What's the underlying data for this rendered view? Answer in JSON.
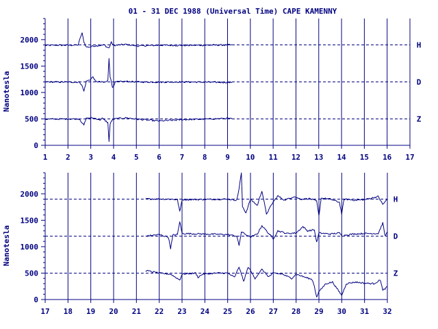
{
  "title": "01 - 31 DEC 1988 (Universal Time) CAPE KAMENNY",
  "chart_data": [
    {
      "type": "line",
      "title": "01 - 31 DEC 1988 (Universal Time) CAPE KAMENNY",
      "ylabel": "Nanotesla",
      "xlim": [
        1,
        17
      ],
      "ylim": [
        0,
        2400
      ],
      "x_ticks": [
        "1",
        "2",
        "3",
        "4",
        "5",
        "6",
        "7",
        "8",
        "9",
        "10",
        "11",
        "12",
        "13",
        "14",
        "15",
        "16",
        "17"
      ],
      "y_ticks": [
        "0",
        "500",
        "1000",
        "1500",
        "2000"
      ],
      "grid": "vertical day lines",
      "series": [
        {
          "name": "H",
          "baseline": 1900,
          "data_end": 9.2,
          "points": [
            [
              1,
              1890
            ],
            [
              1.5,
              1895
            ],
            [
              2.2,
              1895
            ],
            [
              2.45,
              1900
            ],
            [
              2.55,
              2050
            ],
            [
              2.62,
              2120
            ],
            [
              2.7,
              1960
            ],
            [
              2.8,
              1860
            ],
            [
              2.95,
              1860
            ],
            [
              3.1,
              1880
            ],
            [
              3.4,
              1890
            ],
            [
              3.6,
              1900
            ],
            [
              3.7,
              1860
            ],
            [
              3.8,
              1840
            ],
            [
              3.9,
              1950
            ],
            [
              4.0,
              1890
            ],
            [
              4.5,
              1910
            ],
            [
              4.9,
              1890
            ],
            [
              5.0,
              1880
            ],
            [
              6.0,
              1895
            ],
            [
              7.0,
              1890
            ],
            [
              8.0,
              1895
            ],
            [
              9.2,
              1900
            ]
          ]
        },
        {
          "name": "D",
          "baseline": 1200,
          "data_end": 9.2,
          "points": [
            [
              1,
              1200
            ],
            [
              2.5,
              1195
            ],
            [
              2.6,
              1150
            ],
            [
              2.7,
              1020
            ],
            [
              2.8,
              1210
            ],
            [
              3.0,
              1250
            ],
            [
              3.1,
              1300
            ],
            [
              3.2,
              1210
            ],
            [
              3.6,
              1190
            ],
            [
              3.75,
              1220
            ],
            [
              3.8,
              1650
            ],
            [
              3.85,
              1300
            ],
            [
              3.95,
              1100
            ],
            [
              4.1,
              1200
            ],
            [
              4.6,
              1210
            ],
            [
              5.0,
              1200
            ],
            [
              6.0,
              1195
            ],
            [
              7.0,
              1200
            ],
            [
              8.0,
              1195
            ],
            [
              9.2,
              1190
            ]
          ]
        },
        {
          "name": "Z",
          "baseline": 500,
          "data_end": 9.2,
          "points": [
            [
              1,
              495
            ],
            [
              2.5,
              500
            ],
            [
              2.6,
              440
            ],
            [
              2.7,
              380
            ],
            [
              2.8,
              510
            ],
            [
              3.0,
              520
            ],
            [
              3.2,
              510
            ],
            [
              3.4,
              480
            ],
            [
              3.5,
              510
            ],
            [
              3.75,
              430
            ],
            [
              3.8,
              80
            ],
            [
              3.85,
              400
            ],
            [
              3.95,
              490
            ],
            [
              4.2,
              510
            ],
            [
              4.6,
              520
            ],
            [
              5.0,
              495
            ],
            [
              6.0,
              460
            ],
            [
              7.0,
              485
            ],
            [
              8.0,
              495
            ],
            [
              9.0,
              510
            ],
            [
              9.2,
              500
            ]
          ]
        }
      ]
    },
    {
      "type": "line",
      "ylabel": "Nanotesla",
      "xlim": [
        17,
        32
      ],
      "ylim": [
        0,
        2400
      ],
      "x_ticks": [
        "17",
        "18",
        "19",
        "20",
        "21",
        "22",
        "23",
        "24",
        "25",
        "26",
        "27",
        "28",
        "29",
        "30",
        "31",
        "32"
      ],
      "y_ticks": [
        "0",
        "500",
        "1000",
        "1500",
        "2000"
      ],
      "grid": "vertical day lines",
      "series": [
        {
          "name": "H",
          "baseline": 1900,
          "data_start": 21.4,
          "points": [
            [
              21.4,
              1905
            ],
            [
              22.5,
              1900
            ],
            [
              22.8,
              1890
            ],
            [
              22.9,
              1660
            ],
            [
              23.0,
              1890
            ],
            [
              24.0,
              1895
            ],
            [
              25.0,
              1900
            ],
            [
              25.4,
              1880
            ],
            [
              25.5,
              2100
            ],
            [
              25.6,
              2400
            ],
            [
              25.65,
              1760
            ],
            [
              25.8,
              1640
            ],
            [
              26.0,
              1900
            ],
            [
              26.3,
              1780
            ],
            [
              26.5,
              2060
            ],
            [
              26.7,
              1620
            ],
            [
              27.0,
              1850
            ],
            [
              27.2,
              1960
            ],
            [
              27.5,
              1880
            ],
            [
              27.9,
              1950
            ],
            [
              28.2,
              1900
            ],
            [
              28.6,
              1910
            ],
            [
              28.9,
              1860
            ],
            [
              29.0,
              1580
            ],
            [
              29.1,
              1920
            ],
            [
              29.5,
              1900
            ],
            [
              29.9,
              1840
            ],
            [
              30.0,
              1620
            ],
            [
              30.1,
              1900
            ],
            [
              30.6,
              1880
            ],
            [
              31.0,
              1890
            ],
            [
              31.6,
              1950
            ],
            [
              31.8,
              1800
            ],
            [
              32.0,
              1900
            ]
          ]
        },
        {
          "name": "D",
          "baseline": 1200,
          "data_start": 21.4,
          "points": [
            [
              21.4,
              1200
            ],
            [
              22.0,
              1230
            ],
            [
              22.4,
              1180
            ],
            [
              22.5,
              970
            ],
            [
              22.6,
              1220
            ],
            [
              22.8,
              1230
            ],
            [
              22.9,
              1480
            ],
            [
              23.0,
              1250
            ],
            [
              24.0,
              1240
            ],
            [
              25.0,
              1230
            ],
            [
              25.4,
              1200
            ],
            [
              25.5,
              1020
            ],
            [
              25.6,
              1280
            ],
            [
              26.0,
              1180
            ],
            [
              26.3,
              1240
            ],
            [
              26.5,
              1400
            ],
            [
              26.8,
              1250
            ],
            [
              27.0,
              1150
            ],
            [
              27.2,
              1300
            ],
            [
              27.6,
              1250
            ],
            [
              28.0,
              1260
            ],
            [
              28.3,
              1380
            ],
            [
              28.5,
              1300
            ],
            [
              28.8,
              1320
            ],
            [
              28.9,
              1080
            ],
            [
              29.0,
              1260
            ],
            [
              29.5,
              1240
            ],
            [
              29.9,
              1260
            ],
            [
              30.0,
              1210
            ],
            [
              30.5,
              1240
            ],
            [
              31.0,
              1250
            ],
            [
              31.6,
              1250
            ],
            [
              31.8,
              1450
            ],
            [
              31.9,
              1200
            ],
            [
              32.0,
              1280
            ]
          ]
        },
        {
          "name": "Z",
          "baseline": 500,
          "data_start": 21.4,
          "points": [
            [
              21.4,
              550
            ],
            [
              22.0,
              500
            ],
            [
              22.5,
              480
            ],
            [
              22.9,
              370
            ],
            [
              23.0,
              480
            ],
            [
              23.6,
              500
            ],
            [
              23.7,
              420
            ],
            [
              23.9,
              480
            ],
            [
              24.5,
              500
            ],
            [
              25.0,
              500
            ],
            [
              25.3,
              420
            ],
            [
              25.5,
              620
            ],
            [
              25.7,
              340
            ],
            [
              25.9,
              620
            ],
            [
              26.2,
              400
            ],
            [
              26.5,
              570
            ],
            [
              26.8,
              430
            ],
            [
              27.0,
              500
            ],
            [
              27.4,
              480
            ],
            [
              27.8,
              400
            ],
            [
              28.0,
              480
            ],
            [
              28.4,
              420
            ],
            [
              28.7,
              380
            ],
            [
              28.8,
              260
            ],
            [
              28.9,
              40
            ],
            [
              29.0,
              150
            ],
            [
              29.3,
              300
            ],
            [
              29.6,
              330
            ],
            [
              29.8,
              200
            ],
            [
              30.0,
              80
            ],
            [
              30.2,
              300
            ],
            [
              30.6,
              330
            ],
            [
              31.0,
              310
            ],
            [
              31.4,
              300
            ],
            [
              31.7,
              370
            ],
            [
              31.8,
              170
            ],
            [
              32.0,
              240
            ]
          ]
        }
      ]
    }
  ]
}
